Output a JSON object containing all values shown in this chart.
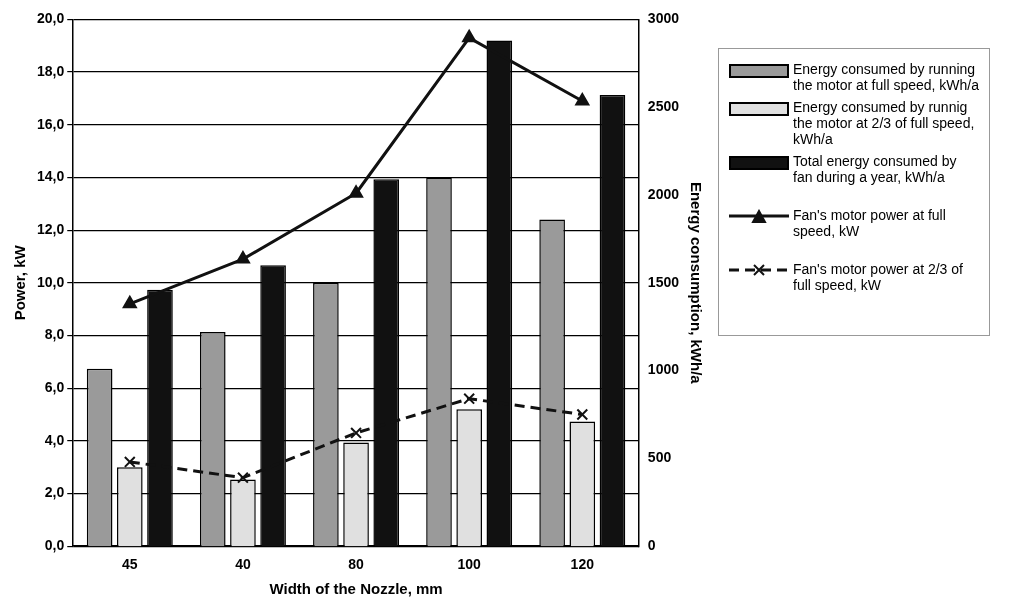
{
  "chart_data": {
    "type": "bar",
    "xlabel": "Width of the Nozzle, mm",
    "ylabel": "Power, kW",
    "y2label": "Energy consumption, kWh/a",
    "categories": [
      "45",
      "40",
      "80",
      "100",
      "120"
    ],
    "series": [
      {
        "name": "Energy consumed by running the motor at full speed, kWh/a",
        "axis": "y2",
        "color": "#9a9a9a",
        "values": [
          1010,
          1220,
          1500,
          2100,
          1860
        ]
      },
      {
        "name": "Energy consumed by runnig the motor at 2/3 of full speed, kWh/a",
        "axis": "y2",
        "color": "#e0e0e0",
        "values": [
          450,
          380,
          590,
          780,
          710
        ]
      },
      {
        "name": "Total energy consumed by fan during a year, kWh/a",
        "axis": "y2",
        "color": "#111111",
        "values": [
          1460,
          1600,
          2090,
          2880,
          2570
        ]
      },
      {
        "name": "Fan's motor power at full speed, kW",
        "type": "line",
        "color": "#111111",
        "marker": "triangle",
        "line_style": "solid",
        "values": [
          9.2,
          10.9,
          13.4,
          19.3,
          16.9
        ]
      },
      {
        "name": "Fan's motor power at 2/3 of full speed, kW",
        "type": "line",
        "color": "#111111",
        "marker": "cross",
        "line_style": "dashed",
        "values": [
          3.2,
          2.6,
          4.3,
          5.6,
          5.0
        ]
      }
    ],
    "ylim": [
      0,
      20
    ],
    "yticks": [
      {
        "value": 0,
        "label": "0,0"
      },
      {
        "value": 2,
        "label": "2,0"
      },
      {
        "value": 4,
        "label": "4,0"
      },
      {
        "value": 6,
        "label": "6,0"
      },
      {
        "value": 8,
        "label": "8,0"
      },
      {
        "value": 10,
        "label": "10,0"
      },
      {
        "value": 12,
        "label": "12,0"
      },
      {
        "value": 14,
        "label": "14,0"
      },
      {
        "value": 16,
        "label": "16,0"
      },
      {
        "value": 18,
        "label": "18,0"
      },
      {
        "value": 20,
        "label": "20,0"
      }
    ],
    "y2lim": [
      0,
      3000
    ],
    "y2ticks": [
      0,
      500,
      1000,
      1500,
      2000,
      2500,
      3000
    ],
    "grid": "y",
    "legend": "right"
  }
}
